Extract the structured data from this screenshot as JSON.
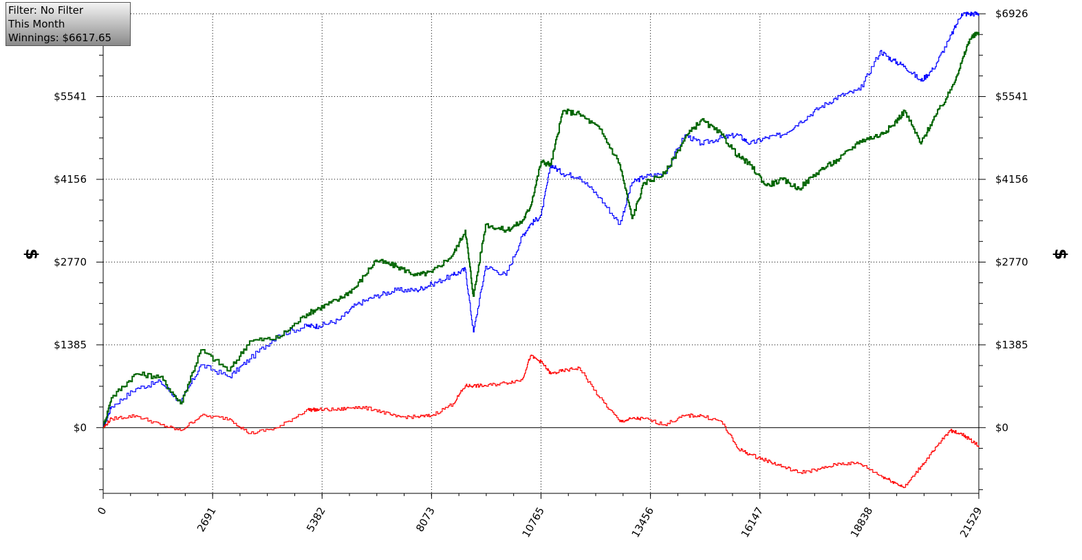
{
  "info_box": {
    "filter": "Filter: No Filter",
    "period": "This Month",
    "winnings": "Winnings: $6617.65"
  },
  "colors": {
    "blue_series": "#0000ff",
    "green_series": "#006400",
    "red_series": "#ff0000",
    "info_box_top": "#f4f4f4",
    "info_box_bottom": "#8a8a8a"
  },
  "chart_data": {
    "type": "line",
    "xlabel": "",
    "ylabel": "$",
    "ylabel_right": "$",
    "xlim": [
      0,
      21529
    ],
    "ylim": [
      -1100,
      6926
    ],
    "x_ticks": [
      "0",
      "2691",
      "5382",
      "8073",
      "10765",
      "13456",
      "16147",
      "18838",
      "21529"
    ],
    "x_tick_values": [
      0,
      2691,
      5382,
      8073,
      10765,
      13456,
      16147,
      18838,
      21529
    ],
    "y_ticks": [
      "$0",
      "$1385",
      "$2770",
      "$4156",
      "$5541",
      "$6926"
    ],
    "y_tick_values": [
      0,
      1385,
      2770,
      4156,
      5541,
      6926
    ],
    "grid": true,
    "zero_line": true,
    "series": [
      {
        "color": "#0000ff",
        "x": [
          0,
          200,
          800,
          1400,
          1900,
          2400,
          3100,
          3600,
          4300,
          5000,
          5300,
          5800,
          6200,
          6700,
          7200,
          7700,
          8073,
          8600,
          8900,
          9100,
          9400,
          9900,
          10300,
          10500,
          10765,
          11000,
          11300,
          11700,
          12200,
          12700,
          13000,
          13300,
          13800,
          14300,
          14700,
          15200,
          15600,
          15900,
          16300,
          16700,
          17100,
          17600,
          18100,
          18600,
          19100,
          19400,
          19700,
          20100,
          20400,
          20800,
          21100,
          21300,
          21529
        ],
        "values": [
          0,
          350,
          650,
          770,
          420,
          1050,
          850,
          1150,
          1550,
          1700,
          1700,
          1800,
          2050,
          2200,
          2300,
          2300,
          2400,
          2550,
          2650,
          1600,
          2700,
          2550,
          3200,
          3400,
          3550,
          4400,
          4250,
          4200,
          3850,
          3400,
          4100,
          4200,
          4250,
          4900,
          4750,
          4850,
          4900,
          4750,
          4850,
          4900,
          5100,
          5350,
          5550,
          5650,
          6300,
          6150,
          6050,
          5800,
          6000,
          6500,
          6926,
          6926,
          6926
        ]
      },
      {
        "color": "#006400",
        "x": [
          0,
          200,
          800,
          1400,
          1900,
          2400,
          3100,
          3600,
          4300,
          5000,
          5300,
          5800,
          6200,
          6700,
          7200,
          7700,
          8073,
          8600,
          8900,
          9100,
          9400,
          9900,
          10300,
          10500,
          10765,
          11000,
          11300,
          11700,
          12200,
          12700,
          13000,
          13300,
          13800,
          14300,
          14700,
          15200,
          15600,
          15900,
          16300,
          16700,
          17100,
          17600,
          18100,
          18600,
          19100,
          19400,
          19700,
          20100,
          20400,
          20800,
          21100,
          21300,
          21529
        ],
        "values": [
          0,
          500,
          900,
          850,
          400,
          1300,
          950,
          1450,
          1500,
          1900,
          2000,
          2150,
          2350,
          2800,
          2700,
          2550,
          2600,
          2900,
          3300,
          2200,
          3400,
          3300,
          3450,
          3700,
          4450,
          4400,
          5300,
          5250,
          5000,
          4400,
          3500,
          4100,
          4250,
          4850,
          5150,
          4900,
          4550,
          4400,
          4050,
          4150,
          4000,
          4300,
          4500,
          4800,
          4900,
          5050,
          5300,
          4750,
          5150,
          5600,
          6100,
          6500,
          6617
        ]
      },
      {
        "color": "#ff0000",
        "x": [
          0,
          200,
          800,
          1400,
          1900,
          2400,
          3100,
          3600,
          4300,
          5000,
          5300,
          5800,
          6200,
          6700,
          7200,
          7700,
          8073,
          8600,
          8900,
          9100,
          9400,
          9900,
          10300,
          10500,
          10765,
          11000,
          11300,
          11700,
          12200,
          12700,
          13000,
          13300,
          13800,
          14300,
          14700,
          15200,
          15600,
          15900,
          16300,
          16700,
          17100,
          17600,
          18100,
          18600,
          19100,
          19400,
          19700,
          20100,
          20400,
          20800,
          21100,
          21300,
          21529
        ],
        "values": [
          0,
          150,
          200,
          50,
          -50,
          200,
          150,
          -100,
          0,
          300,
          300,
          300,
          350,
          300,
          180,
          180,
          200,
          400,
          700,
          700,
          700,
          750,
          800,
          1200,
          1100,
          900,
          950,
          1000,
          500,
          100,
          150,
          150,
          50,
          200,
          200,
          100,
          -350,
          -450,
          -550,
          -650,
          -750,
          -700,
          -600,
          -600,
          -800,
          -900,
          -1000,
          -650,
          -400,
          -50,
          -100,
          -200,
          -300
        ]
      }
    ]
  }
}
